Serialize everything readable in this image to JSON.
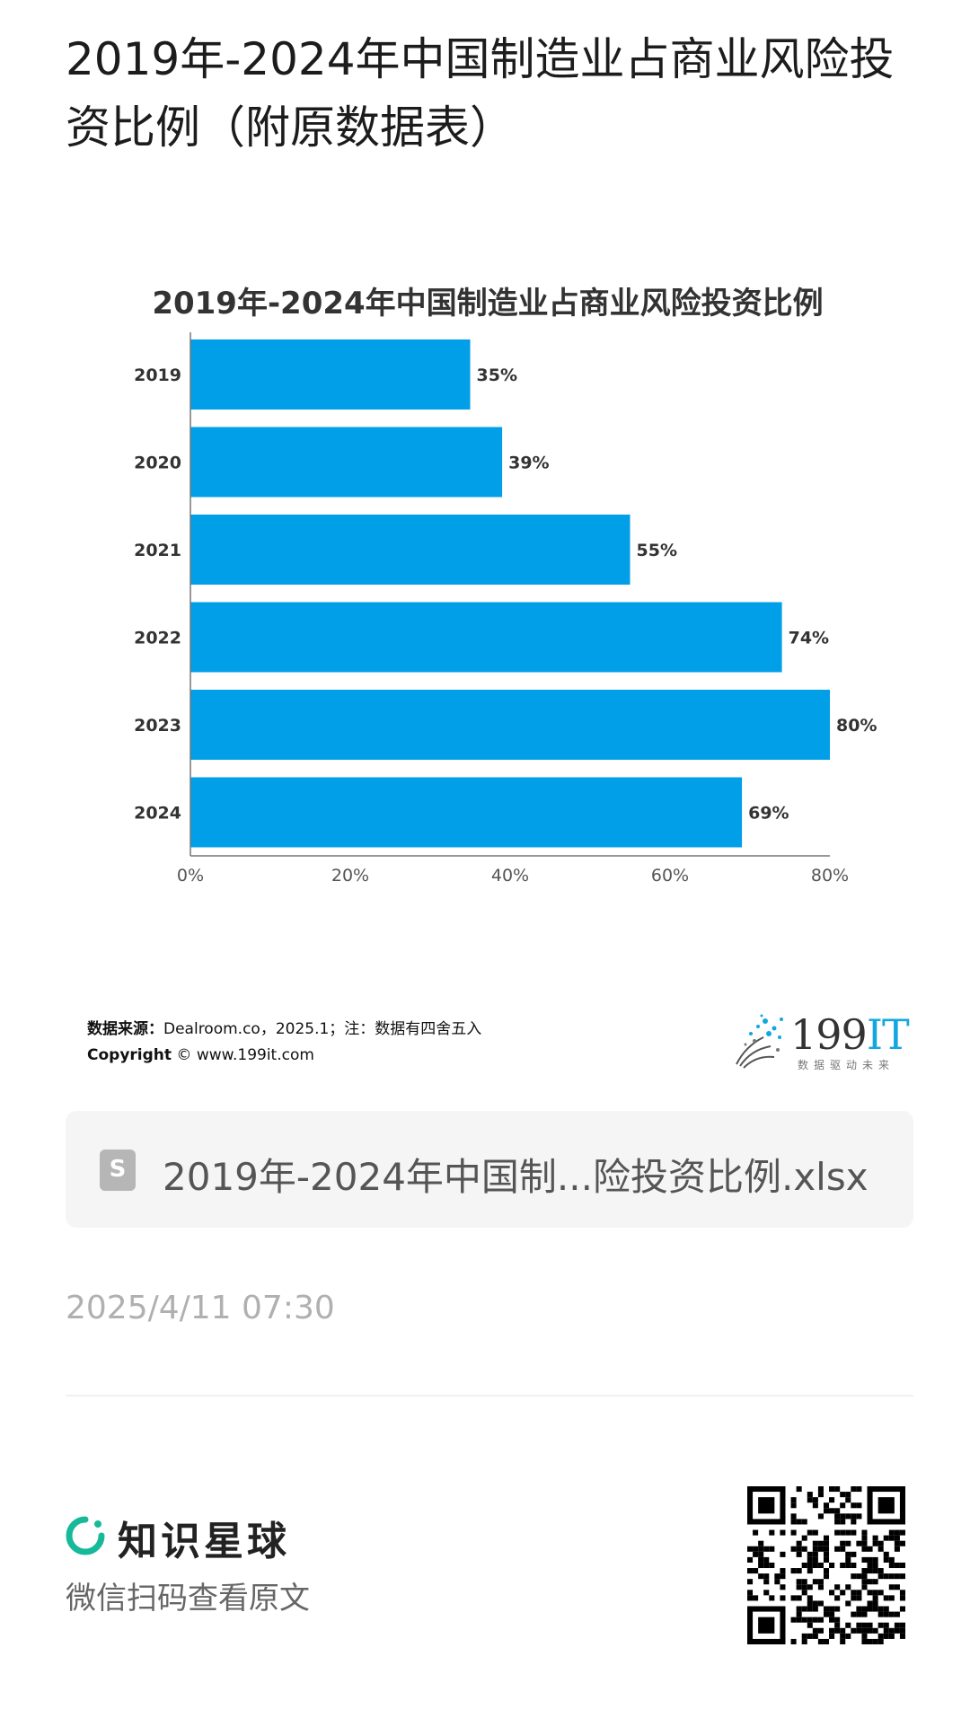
{
  "page": {
    "title": "2019年-2024年中国制造业占商业风险投资比例（附原数据表）"
  },
  "chart_data": {
    "type": "bar",
    "orientation": "horizontal",
    "title": "2019年-2024年中国制造业占商业风险投资比例",
    "categories": [
      "2019",
      "2020",
      "2021",
      "2022",
      "2023",
      "2024"
    ],
    "values": [
      35,
      39,
      55,
      74,
      80,
      69
    ],
    "data_labels": [
      "35%",
      "39%",
      "55%",
      "74%",
      "80%",
      "69%"
    ],
    "xlim": [
      0,
      80
    ],
    "x_ticks": [
      "0%",
      "20%",
      "40%",
      "60%",
      "80%"
    ],
    "xlabel": "",
    "ylabel": "",
    "grid": false,
    "bar_color": "#009fe8"
  },
  "source": {
    "label": "数据来源：",
    "text": "Dealroom.co，2025.1；注：数据有四舍五入",
    "copyright_label": "Copyright",
    "copyright_text": "© www.199it.com"
  },
  "logo": {
    "main": "199",
    "accent": "IT",
    "tagline": "数据驱动未来",
    "accent_color": "#12a7e0"
  },
  "attachment": {
    "icon": "spreadsheet-file-icon",
    "icon_letter": "S",
    "filename": "2019年-2024年中国制...险投资比例.xlsx"
  },
  "timestamp": "2025/4/11 07:30",
  "footer": {
    "brand_name": "知识星球",
    "brand_color": "#16b998",
    "cta": "微信扫码查看原文"
  }
}
